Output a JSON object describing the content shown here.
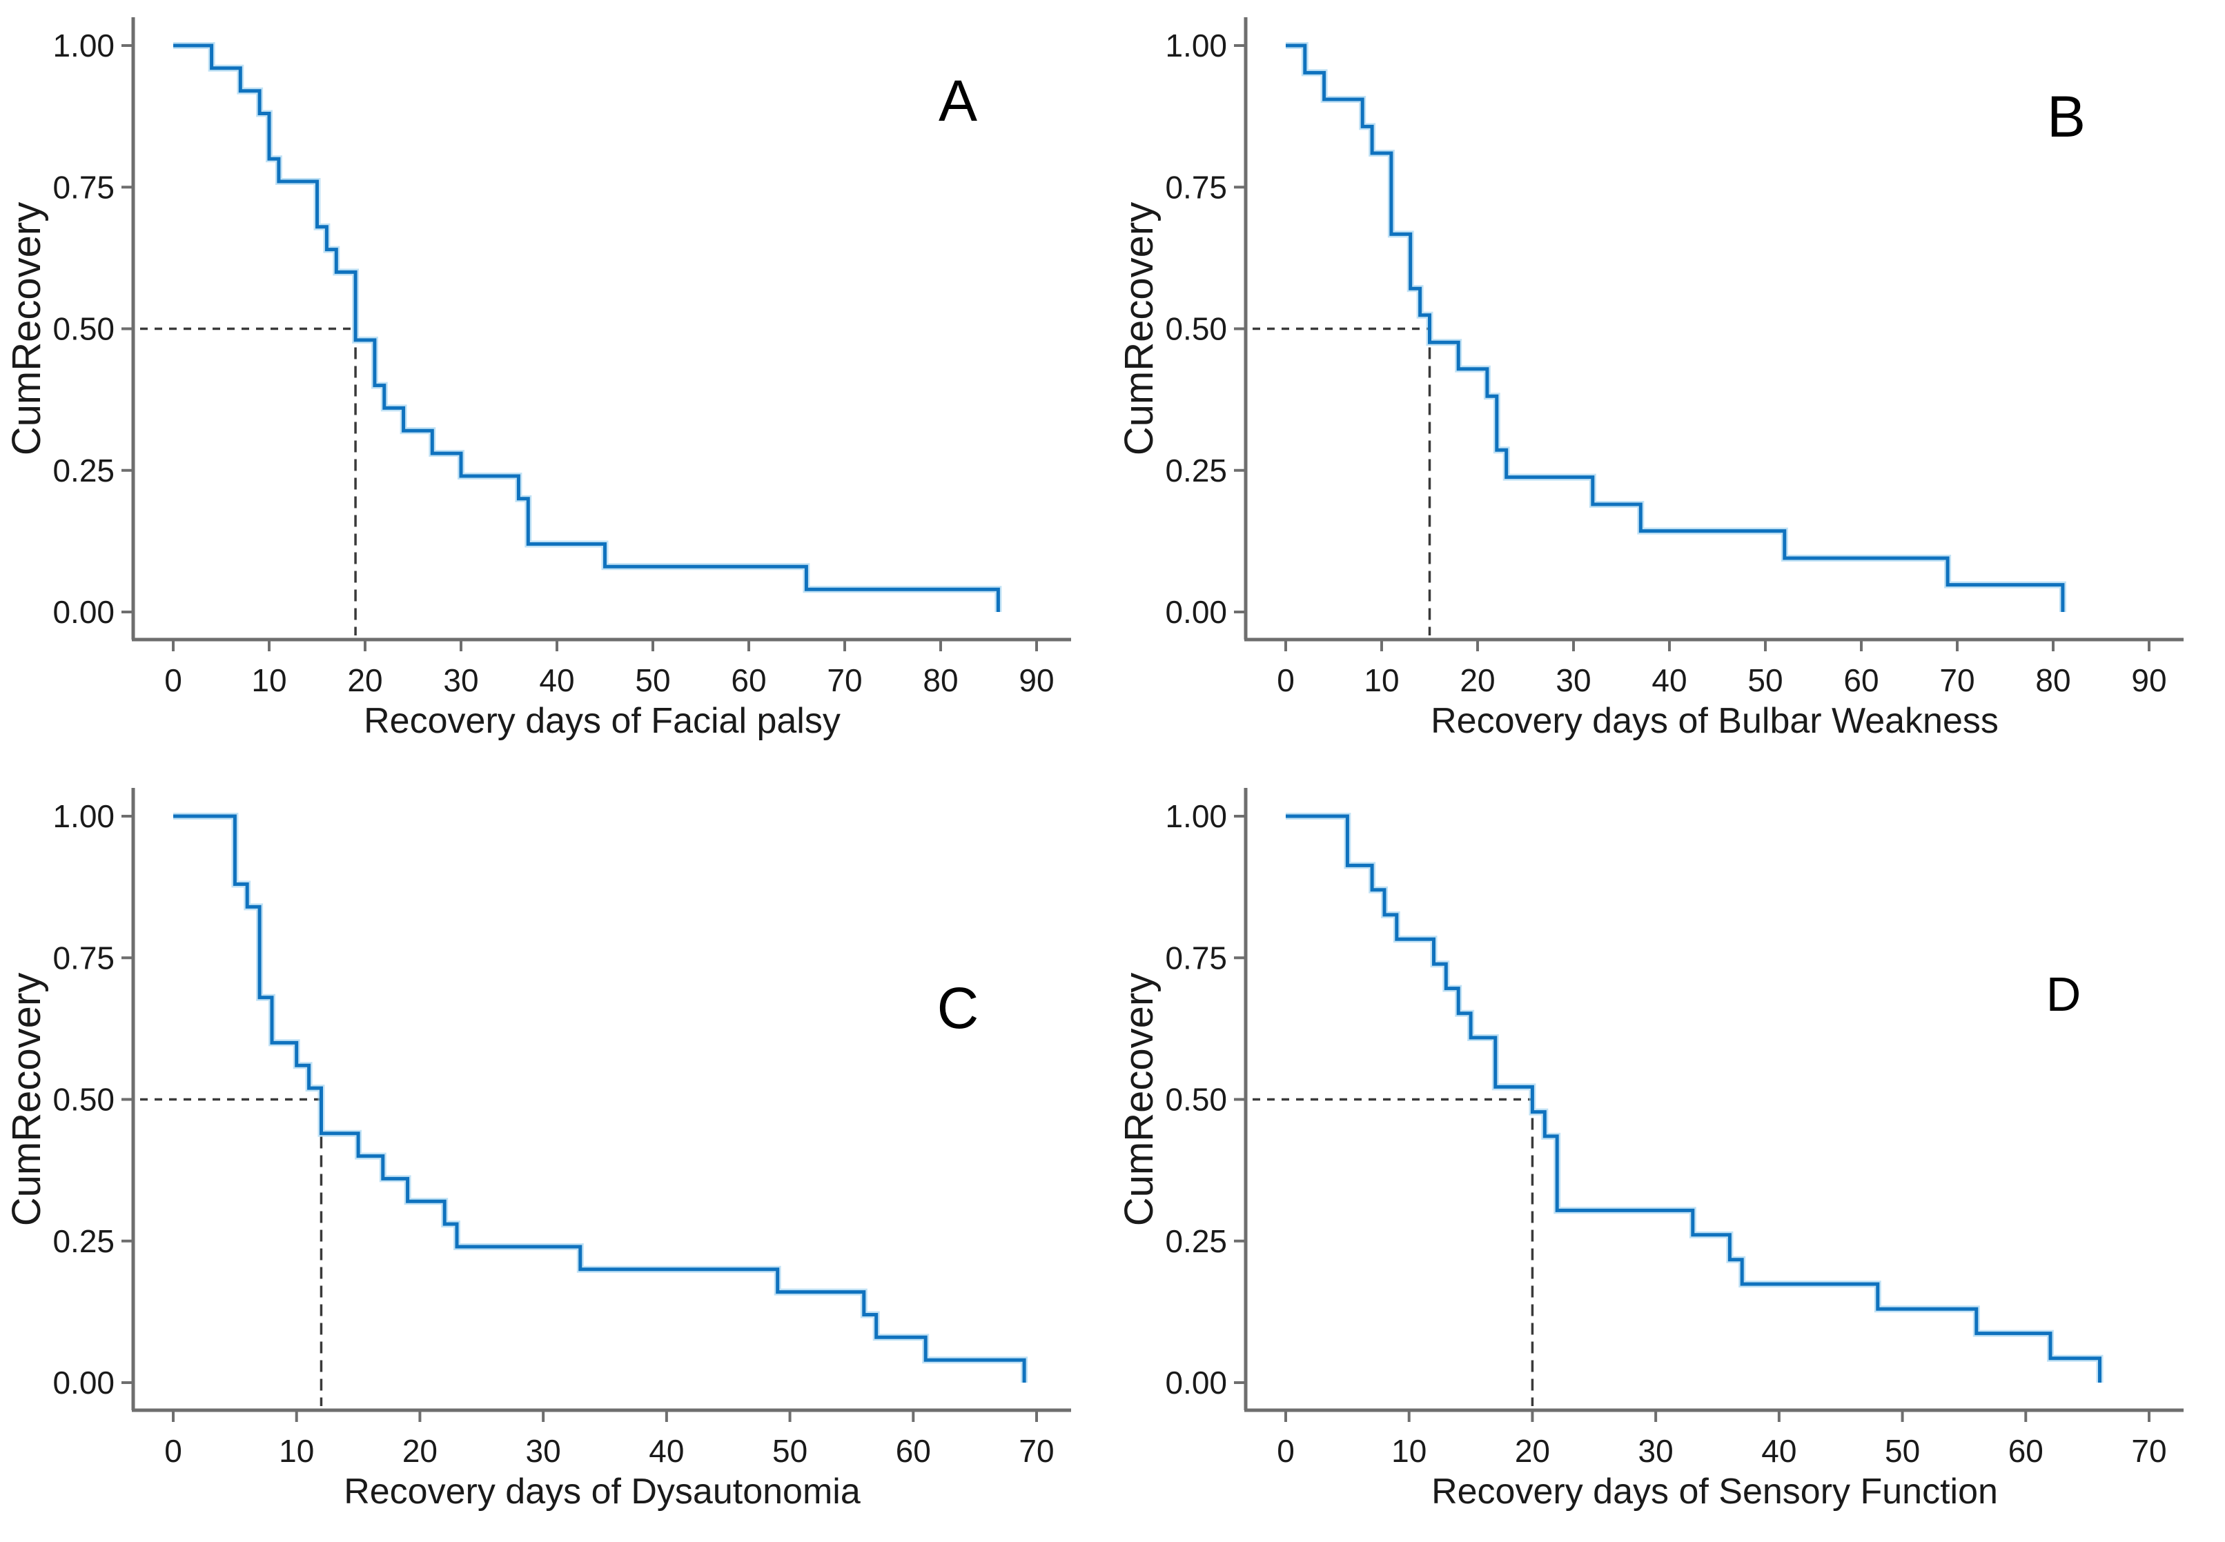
{
  "figure_title": "",
  "colors": {
    "curve": "#0F72BE",
    "curve_halo": "#8ECAEC",
    "axis": "#6E6E6E",
    "text": "#1A1A1A",
    "dashed": "#3A3A3A",
    "background": "#FFFFFF"
  },
  "chart_data": [
    {
      "type": "line",
      "subtype": "step-survival",
      "panel_letter": "A",
      "xlabel": "Recovery days of Facial palsy",
      "ylabel": "CumRecovery",
      "x_ticks": [
        0,
        10,
        20,
        30,
        40,
        50,
        60,
        70,
        80,
        90
      ],
      "y_tick_labels": [
        "1.00",
        "0.75",
        "0.50",
        "0.25",
        "0.00"
      ],
      "y_tick_values": [
        1.0,
        0.75,
        0.5,
        0.25,
        0.0
      ],
      "xlim": [
        0,
        94
      ],
      "ylim": [
        0,
        1
      ],
      "grid": false,
      "legend": "none",
      "median_day": 19,
      "median_value": 0.5,
      "points": [
        [
          0,
          1.0
        ],
        [
          4,
          0.96
        ],
        [
          7,
          0.92
        ],
        [
          9,
          0.88
        ],
        [
          10,
          0.8
        ],
        [
          11,
          0.76
        ],
        [
          15,
          0.68
        ],
        [
          16,
          0.64
        ],
        [
          17,
          0.6
        ],
        [
          19,
          0.48
        ],
        [
          21,
          0.4
        ],
        [
          22,
          0.36
        ],
        [
          24,
          0.32
        ],
        [
          27,
          0.28
        ],
        [
          30,
          0.24
        ],
        [
          36,
          0.2
        ],
        [
          37,
          0.12
        ],
        [
          45,
          0.08
        ],
        [
          66,
          0.04
        ],
        [
          86,
          0.0
        ]
      ]
    },
    {
      "type": "line",
      "subtype": "step-survival",
      "panel_letter": "B",
      "xlabel": "Recovery days of Bulbar Weakness",
      "ylabel": "CumRecovery",
      "x_ticks": [
        0,
        10,
        20,
        30,
        40,
        50,
        60,
        70,
        80,
        90
      ],
      "y_tick_labels": [
        "1.00",
        "0.75",
        "0.50",
        "0.25",
        "0.00"
      ],
      "y_tick_values": [
        1.0,
        0.75,
        0.5,
        0.25,
        0.0
      ],
      "xlim": [
        0,
        94
      ],
      "ylim": [
        0,
        1
      ],
      "grid": false,
      "legend": "none",
      "median_day": 15,
      "median_value": 0.5,
      "points": [
        [
          0,
          1.0
        ],
        [
          2,
          0.952
        ],
        [
          4,
          0.905
        ],
        [
          8,
          0.857
        ],
        [
          9,
          0.81
        ],
        [
          11,
          0.667
        ],
        [
          13,
          0.571
        ],
        [
          14,
          0.524
        ],
        [
          15,
          0.476
        ],
        [
          18,
          0.429
        ],
        [
          21,
          0.381
        ],
        [
          22,
          0.286
        ],
        [
          23,
          0.238
        ],
        [
          32,
          0.19
        ],
        [
          37,
          0.143
        ],
        [
          52,
          0.095
        ],
        [
          69,
          0.048
        ],
        [
          81,
          0.0
        ]
      ]
    },
    {
      "type": "line",
      "subtype": "step-survival",
      "panel_letter": "C",
      "xlabel": "Recovery days of Dysautonomia",
      "ylabel": "CumRecovery",
      "x_ticks": [
        0,
        10,
        20,
        30,
        40,
        50,
        60,
        70
      ],
      "y_tick_labels": [
        "1.00",
        "0.75",
        "0.50",
        "0.25",
        "0.00"
      ],
      "y_tick_values": [
        1.0,
        0.75,
        0.5,
        0.25,
        0.0
      ],
      "xlim": [
        0,
        73
      ],
      "ylim": [
        0,
        1
      ],
      "grid": false,
      "legend": "none",
      "median_day": 12,
      "median_value": 0.5,
      "points": [
        [
          0,
          1.0
        ],
        [
          5,
          0.88
        ],
        [
          6,
          0.84
        ],
        [
          7,
          0.68
        ],
        [
          8,
          0.6
        ],
        [
          10,
          0.56
        ],
        [
          11,
          0.52
        ],
        [
          12,
          0.44
        ],
        [
          15,
          0.4
        ],
        [
          17,
          0.36
        ],
        [
          19,
          0.32
        ],
        [
          22,
          0.28
        ],
        [
          23,
          0.24
        ],
        [
          33,
          0.2
        ],
        [
          49,
          0.16
        ],
        [
          56,
          0.12
        ],
        [
          57,
          0.08
        ],
        [
          61,
          0.04
        ],
        [
          69,
          0.0
        ]
      ]
    },
    {
      "type": "line",
      "subtype": "step-survival",
      "panel_letter": "D",
      "xlabel": "Recovery days of Sensory Function",
      "ylabel": "CumRecovery",
      "x_ticks": [
        0,
        10,
        20,
        30,
        40,
        50,
        60,
        70
      ],
      "y_tick_labels": [
        "1.00",
        "0.75",
        "0.50",
        "0.25",
        "0.00"
      ],
      "y_tick_values": [
        1.0,
        0.75,
        0.5,
        0.25,
        0.0
      ],
      "xlim": [
        0,
        73
      ],
      "ylim": [
        0,
        1
      ],
      "grid": false,
      "legend": "none",
      "median_day": 20,
      "median_value": 0.5,
      "points": [
        [
          0,
          1.0
        ],
        [
          5,
          0.913
        ],
        [
          7,
          0.87
        ],
        [
          8,
          0.826
        ],
        [
          9,
          0.783
        ],
        [
          12,
          0.739
        ],
        [
          13,
          0.696
        ],
        [
          14,
          0.652
        ],
        [
          15,
          0.609
        ],
        [
          17,
          0.522
        ],
        [
          20,
          0.478
        ],
        [
          21,
          0.435
        ],
        [
          22,
          0.304
        ],
        [
          33,
          0.261
        ],
        [
          36,
          0.217
        ],
        [
          37,
          0.174
        ],
        [
          48,
          0.13
        ],
        [
          56,
          0.087
        ],
        [
          62,
          0.043
        ],
        [
          66,
          0.0
        ]
      ]
    }
  ]
}
